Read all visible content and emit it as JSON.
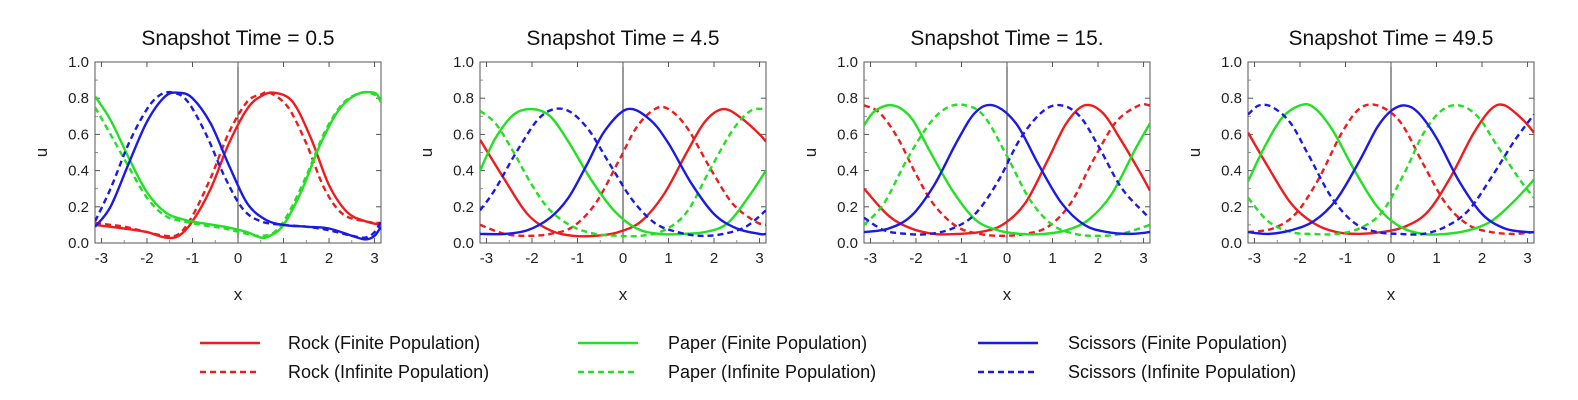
{
  "chart_data": [
    {
      "type": "line",
      "title": "Snapshot Time = 0.5",
      "xlabel": "x",
      "ylabel": "u",
      "xlim": [
        -3.14159,
        3.14159
      ],
      "ylim": [
        0,
        1.0
      ],
      "xticks": [
        -3,
        -2,
        -1,
        0,
        1,
        2,
        3
      ],
      "yticks": [
        0.0,
        0.2,
        0.4,
        0.6,
        0.8,
        1.0
      ],
      "yticklabels": [
        "0.0",
        "0.2",
        "0.4",
        "0.6",
        "0.8",
        "1.0"
      ],
      "series": [
        {
          "key": "rock_finite",
          "x": [
            -3.14,
            -2.5,
            -2.0,
            -1.6,
            -1.3,
            -1.0,
            -0.6,
            -0.2,
            0.2,
            0.5,
            0.8,
            1.2,
            1.6,
            2.0,
            2.4,
            2.8,
            3.14
          ],
          "y": [
            0.1,
            0.08,
            0.06,
            0.03,
            0.04,
            0.12,
            0.3,
            0.55,
            0.74,
            0.81,
            0.83,
            0.78,
            0.58,
            0.32,
            0.17,
            0.12,
            0.1
          ]
        },
        {
          "key": "rock_infinite",
          "x": [
            -3.14,
            -2.5,
            -2.0,
            -1.6,
            -1.3,
            -1.0,
            -0.6,
            -0.2,
            0.2,
            0.5,
            0.7,
            1.1,
            1.5,
            1.9,
            2.3,
            2.8,
            3.14
          ],
          "y": [
            0.11,
            0.09,
            0.06,
            0.04,
            0.05,
            0.15,
            0.36,
            0.61,
            0.78,
            0.82,
            0.83,
            0.75,
            0.55,
            0.3,
            0.16,
            0.12,
            0.11
          ]
        },
        {
          "key": "paper_finite",
          "x": [
            -3.14,
            -2.8,
            -2.4,
            -2.0,
            -1.6,
            -1.2,
            -0.8,
            -0.3,
            0.2,
            0.5,
            0.7,
            1.0,
            1.4,
            1.8,
            2.2,
            2.6,
            3.0,
            3.14
          ],
          "y": [
            0.81,
            0.68,
            0.47,
            0.28,
            0.17,
            0.13,
            0.11,
            0.09,
            0.06,
            0.03,
            0.04,
            0.1,
            0.29,
            0.54,
            0.73,
            0.82,
            0.83,
            0.78
          ]
        },
        {
          "key": "paper_infinite",
          "x": [
            -3.14,
            -2.8,
            -2.4,
            -2.0,
            -1.6,
            -1.2,
            -0.8,
            -0.3,
            0.2,
            0.5,
            0.8,
            1.1,
            1.5,
            1.9,
            2.3,
            2.7,
            3.0,
            3.14
          ],
          "y": [
            0.75,
            0.6,
            0.42,
            0.25,
            0.15,
            0.12,
            0.1,
            0.08,
            0.05,
            0.04,
            0.06,
            0.16,
            0.37,
            0.61,
            0.77,
            0.83,
            0.82,
            0.78
          ]
        },
        {
          "key": "scissors_finite",
          "x": [
            -3.14,
            -2.8,
            -2.4,
            -2.0,
            -1.6,
            -1.3,
            -1.0,
            -0.6,
            -0.2,
            0.2,
            0.6,
            1.0,
            1.5,
            2.0,
            2.5,
            2.8,
            3.0,
            3.14
          ],
          "y": [
            0.09,
            0.2,
            0.44,
            0.67,
            0.81,
            0.83,
            0.8,
            0.66,
            0.43,
            0.22,
            0.13,
            0.1,
            0.09,
            0.08,
            0.04,
            0.02,
            0.04,
            0.09
          ]
        },
        {
          "key": "scissors_infinite",
          "x": [
            -3.14,
            -2.8,
            -2.4,
            -2.0,
            -1.7,
            -1.4,
            -1.1,
            -0.7,
            -0.3,
            0.1,
            0.5,
            1.0,
            1.5,
            2.0,
            2.5,
            2.8,
            3.0,
            3.14
          ],
          "y": [
            0.12,
            0.3,
            0.55,
            0.74,
            0.82,
            0.83,
            0.78,
            0.6,
            0.37,
            0.19,
            0.12,
            0.1,
            0.09,
            0.07,
            0.04,
            0.03,
            0.06,
            0.12
          ]
        }
      ]
    },
    {
      "type": "line",
      "title": "Snapshot Time = 4.5",
      "xlabel": "x",
      "ylabel": "u",
      "xlim": [
        -3.14159,
        3.14159
      ],
      "ylim": [
        0,
        1.0
      ],
      "xticks": [
        -3,
        -2,
        -1,
        0,
        1,
        2,
        3
      ],
      "yticks": [
        0.0,
        0.2,
        0.4,
        0.6,
        0.8,
        1.0
      ],
      "yticklabels": [
        "0.0",
        "0.2",
        "0.4",
        "0.6",
        "0.8",
        "1.0"
      ],
      "series": [
        {
          "key": "rock_finite",
          "x": [
            -3.14,
            -2.6,
            -2.1,
            -1.6,
            -1.1,
            -0.6,
            -0.1,
            0.4,
            0.9,
            1.4,
            1.8,
            2.2,
            2.6,
            3.0,
            3.14
          ],
          "y": [
            0.57,
            0.35,
            0.16,
            0.07,
            0.04,
            0.04,
            0.06,
            0.12,
            0.27,
            0.5,
            0.67,
            0.74,
            0.69,
            0.6,
            0.56
          ]
        },
        {
          "key": "rock_infinite",
          "x": [
            -3.14,
            -2.6,
            -2.1,
            -1.6,
            -1.1,
            -0.6,
            -0.1,
            0.3,
            0.7,
            1.0,
            1.4,
            1.9,
            2.4,
            2.9,
            3.14
          ],
          "y": [
            0.1,
            0.05,
            0.04,
            0.05,
            0.09,
            0.22,
            0.45,
            0.64,
            0.74,
            0.74,
            0.64,
            0.42,
            0.22,
            0.12,
            0.1
          ]
        },
        {
          "key": "paper_finite",
          "x": [
            -3.14,
            -2.8,
            -2.4,
            -2.0,
            -1.6,
            -1.2,
            -0.7,
            -0.2,
            0.3,
            0.8,
            1.3,
            1.8,
            2.3,
            2.8,
            3.14
          ],
          "y": [
            0.4,
            0.58,
            0.71,
            0.74,
            0.7,
            0.56,
            0.35,
            0.18,
            0.08,
            0.05,
            0.05,
            0.06,
            0.11,
            0.27,
            0.4
          ]
        },
        {
          "key": "paper_infinite",
          "x": [
            -3.14,
            -2.8,
            -2.4,
            -2.0,
            -1.6,
            -1.1,
            -0.6,
            -0.1,
            0.4,
            0.9,
            1.4,
            1.9,
            2.4,
            2.8,
            3.14
          ],
          "y": [
            0.73,
            0.66,
            0.5,
            0.32,
            0.18,
            0.09,
            0.05,
            0.04,
            0.04,
            0.07,
            0.17,
            0.4,
            0.62,
            0.73,
            0.74
          ]
        },
        {
          "key": "scissors_finite",
          "x": [
            -3.14,
            -2.6,
            -2.1,
            -1.6,
            -1.2,
            -0.8,
            -0.4,
            0.1,
            0.6,
            1.0,
            1.5,
            2.0,
            2.5,
            3.0,
            3.14
          ],
          "y": [
            0.05,
            0.05,
            0.07,
            0.14,
            0.25,
            0.43,
            0.62,
            0.74,
            0.68,
            0.55,
            0.33,
            0.16,
            0.08,
            0.05,
            0.05
          ]
        },
        {
          "key": "scissors_infinite",
          "x": [
            -3.14,
            -2.8,
            -2.3,
            -1.8,
            -1.3,
            -0.8,
            -0.3,
            0.2,
            0.7,
            1.2,
            1.7,
            2.2,
            2.7,
            3.14
          ],
          "y": [
            0.18,
            0.3,
            0.52,
            0.7,
            0.74,
            0.64,
            0.44,
            0.24,
            0.11,
            0.06,
            0.04,
            0.05,
            0.09,
            0.18
          ]
        }
      ]
    },
    {
      "type": "line",
      "title": "Snapshot Time = 15.",
      "xlabel": "x",
      "ylabel": "u",
      "xlim": [
        -3.14159,
        3.14159
      ],
      "ylim": [
        0,
        1.0
      ],
      "xticks": [
        -3,
        -2,
        -1,
        0,
        1,
        2,
        3
      ],
      "yticks": [
        0.0,
        0.2,
        0.4,
        0.6,
        0.8,
        1.0
      ],
      "yticklabels": [
        "0.0",
        "0.2",
        "0.4",
        "0.6",
        "0.8",
        "1.0"
      ],
      "series": [
        {
          "key": "rock_finite",
          "x": [
            -3.14,
            -2.6,
            -2.1,
            -1.6,
            -1.1,
            -0.6,
            -0.1,
            0.4,
            0.9,
            1.3,
            1.7,
            2.1,
            2.5,
            2.9,
            3.14
          ],
          "y": [
            0.3,
            0.15,
            0.08,
            0.05,
            0.05,
            0.06,
            0.1,
            0.22,
            0.46,
            0.66,
            0.76,
            0.72,
            0.57,
            0.4,
            0.29
          ]
        },
        {
          "key": "rock_infinite",
          "x": [
            -3.14,
            -2.8,
            -2.4,
            -2.0,
            -1.6,
            -1.1,
            -0.6,
            -0.1,
            0.4,
            0.9,
            1.4,
            1.9,
            2.4,
            2.9,
            3.14
          ],
          "y": [
            0.76,
            0.72,
            0.58,
            0.38,
            0.21,
            0.09,
            0.05,
            0.04,
            0.05,
            0.09,
            0.22,
            0.46,
            0.67,
            0.76,
            0.76
          ]
        },
        {
          "key": "paper_finite",
          "x": [
            -3.14,
            -2.9,
            -2.5,
            -2.1,
            -1.7,
            -1.2,
            -0.7,
            -0.2,
            0.3,
            0.8,
            1.3,
            1.8,
            2.3,
            2.8,
            3.14
          ],
          "y": [
            0.65,
            0.73,
            0.76,
            0.69,
            0.51,
            0.29,
            0.13,
            0.07,
            0.05,
            0.05,
            0.07,
            0.13,
            0.27,
            0.51,
            0.66
          ]
        },
        {
          "key": "paper_infinite",
          "x": [
            -3.14,
            -2.7,
            -2.2,
            -1.7,
            -1.3,
            -0.9,
            -0.5,
            0.0,
            0.5,
            1.0,
            1.5,
            2.0,
            2.5,
            3.14
          ],
          "y": [
            0.1,
            0.22,
            0.46,
            0.66,
            0.75,
            0.76,
            0.7,
            0.48,
            0.24,
            0.1,
            0.05,
            0.04,
            0.05,
            0.1
          ]
        },
        {
          "key": "scissors_finite",
          "x": [
            -3.14,
            -2.6,
            -2.1,
            -1.6,
            -1.1,
            -0.7,
            -0.3,
            0.2,
            0.7,
            1.2,
            1.7,
            2.2,
            2.7,
            3.14
          ],
          "y": [
            0.06,
            0.08,
            0.15,
            0.32,
            0.56,
            0.72,
            0.76,
            0.66,
            0.43,
            0.22,
            0.1,
            0.06,
            0.05,
            0.06
          ]
        },
        {
          "key": "scissors_infinite",
          "x": [
            -3.14,
            -2.7,
            -2.2,
            -1.7,
            -1.2,
            -0.7,
            -0.2,
            0.3,
            0.8,
            1.2,
            1.6,
            2.0,
            2.5,
            3.0,
            3.14
          ],
          "y": [
            0.14,
            0.07,
            0.05,
            0.05,
            0.08,
            0.16,
            0.34,
            0.58,
            0.73,
            0.76,
            0.7,
            0.54,
            0.31,
            0.17,
            0.14
          ]
        }
      ]
    },
    {
      "type": "line",
      "title": "Snapshot Time = 49.5",
      "xlabel": "x",
      "ylabel": "u",
      "xlim": [
        -3.14159,
        3.14159
      ],
      "ylim": [
        0,
        1.0
      ],
      "xticks": [
        -3,
        -2,
        -1,
        0,
        1,
        2,
        3
      ],
      "yticks": [
        0.0,
        0.2,
        0.4,
        0.6,
        0.8,
        1.0
      ],
      "yticklabels": [
        "0.0",
        "0.2",
        "0.4",
        "0.6",
        "0.8",
        "1.0"
      ],
      "series": [
        {
          "key": "rock_finite",
          "x": [
            -3.14,
            -2.7,
            -2.2,
            -1.7,
            -1.2,
            -0.7,
            -0.2,
            0.3,
            0.8,
            1.3,
            1.8,
            2.2,
            2.5,
            2.9,
            3.14
          ],
          "y": [
            0.61,
            0.42,
            0.22,
            0.11,
            0.06,
            0.05,
            0.06,
            0.09,
            0.17,
            0.36,
            0.6,
            0.74,
            0.76,
            0.68,
            0.61
          ]
        },
        {
          "key": "rock_infinite",
          "x": [
            -3.14,
            -2.6,
            -2.1,
            -1.6,
            -1.1,
            -0.7,
            -0.3,
            0.2,
            0.7,
            1.2,
            1.7,
            2.2,
            2.7,
            3.14
          ],
          "y": [
            0.06,
            0.08,
            0.16,
            0.35,
            0.6,
            0.74,
            0.76,
            0.67,
            0.44,
            0.22,
            0.1,
            0.06,
            0.05,
            0.06
          ]
        },
        {
          "key": "paper_finite",
          "x": [
            -3.14,
            -2.8,
            -2.4,
            -2.0,
            -1.7,
            -1.3,
            -0.8,
            -0.3,
            0.2,
            0.7,
            1.2,
            1.7,
            2.2,
            2.7,
            3.14
          ],
          "y": [
            0.34,
            0.52,
            0.69,
            0.76,
            0.75,
            0.63,
            0.4,
            0.2,
            0.09,
            0.05,
            0.05,
            0.07,
            0.12,
            0.23,
            0.35
          ]
        },
        {
          "key": "paper_infinite",
          "x": [
            -3.14,
            -2.7,
            -2.2,
            -1.7,
            -1.2,
            -0.7,
            -0.2,
            0.3,
            0.7,
            1.1,
            1.5,
            1.9,
            2.3,
            2.8,
            3.14
          ],
          "y": [
            0.25,
            0.12,
            0.06,
            0.05,
            0.05,
            0.08,
            0.17,
            0.39,
            0.6,
            0.73,
            0.76,
            0.7,
            0.55,
            0.36,
            0.25
          ]
        },
        {
          "key": "scissors_finite",
          "x": [
            -3.14,
            -2.7,
            -2.2,
            -1.7,
            -1.2,
            -0.7,
            -0.3,
            0.0,
            0.3,
            0.6,
            1.0,
            1.5,
            2.0,
            2.5,
            3.0,
            3.14
          ],
          "y": [
            0.06,
            0.05,
            0.07,
            0.12,
            0.24,
            0.45,
            0.64,
            0.73,
            0.76,
            0.72,
            0.58,
            0.34,
            0.16,
            0.08,
            0.06,
            0.06
          ]
        },
        {
          "key": "scissors_infinite",
          "x": [
            -3.14,
            -2.9,
            -2.6,
            -2.2,
            -1.8,
            -1.3,
            -0.8,
            -0.3,
            0.2,
            0.7,
            1.2,
            1.7,
            2.2,
            2.7,
            3.14
          ],
          "y": [
            0.71,
            0.76,
            0.75,
            0.66,
            0.48,
            0.25,
            0.11,
            0.06,
            0.05,
            0.05,
            0.09,
            0.18,
            0.36,
            0.56,
            0.71
          ]
        }
      ]
    }
  ],
  "legend": {
    "placement": "bottom",
    "entries": [
      {
        "key": "rock_finite",
        "label": "Rock (Finite Population)",
        "color": "#ee1c1c",
        "dashed": false
      },
      {
        "key": "rock_infinite",
        "label": "Rock (Infinite Population)",
        "color": "#ee1c1c",
        "dashed": true
      },
      {
        "key": "paper_finite",
        "label": "Paper (Finite Population)",
        "color": "#22e022",
        "dashed": false
      },
      {
        "key": "paper_infinite",
        "label": "Paper (Infinite Population)",
        "color": "#22e022",
        "dashed": true
      },
      {
        "key": "scissors_finite",
        "label": "Scissors (Finite Population)",
        "color": "#1a1ae6",
        "dashed": false
      },
      {
        "key": "scissors_infinite",
        "label": "Scissors (Infinite Population)",
        "color": "#1a1ae6",
        "dashed": true
      }
    ]
  }
}
